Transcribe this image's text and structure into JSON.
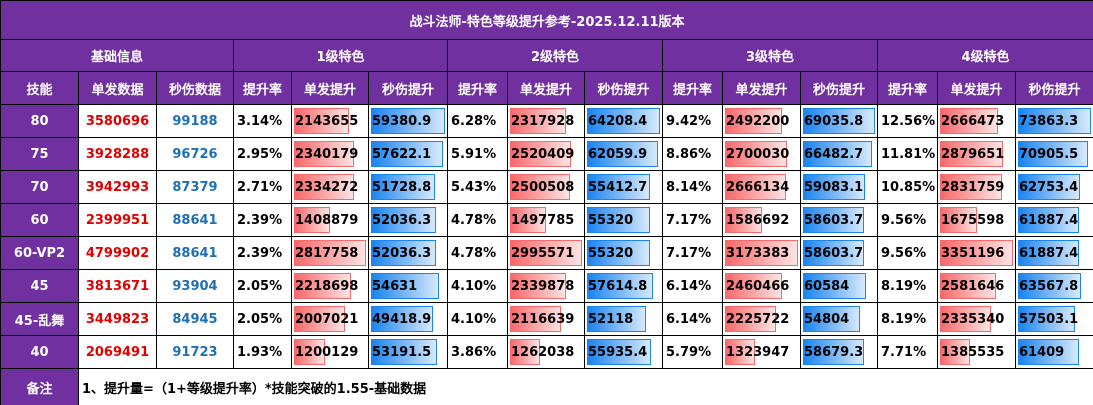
{
  "title": "战斗法师-特色等级提升参考-2025.12.11版本",
  "header": {
    "groups": [
      "基础信息",
      "1级特色",
      "2级特色",
      "3级特色",
      "4级特色"
    ],
    "columns": [
      "技能",
      "单发数据",
      "秒伤数据",
      "提升率",
      "单发提升",
      "秒伤提升",
      "提升率",
      "单发提升",
      "秒伤提升",
      "提升率",
      "单发提升",
      "秒伤提升",
      "提升率",
      "单发提升",
      "秒伤提升"
    ]
  },
  "rows": [
    [
      "80",
      3580696,
      99188,
      "3.14%",
      2143655,
      59380.9,
      "6.28%",
      2317928,
      64208.4,
      "9.42%",
      2492200,
      69035.8,
      "12.56%",
      2666473,
      73863.3
    ],
    [
      "75",
      3928288,
      96726,
      "2.95%",
      2340179,
      57622.1,
      "5.91%",
      2520409,
      62059.9,
      "8.86%",
      2700030,
      66482.7,
      "11.81%",
      2879651,
      70905.5
    ],
    [
      "70",
      3942993,
      87379,
      "2.71%",
      2334272,
      51728.8,
      "5.43%",
      2500508,
      55412.7,
      "8.14%",
      2666134,
      59083.1,
      "10.85%",
      2831759,
      62753.4
    ],
    [
      "60",
      2399951,
      88641,
      "2.39%",
      1408879,
      52036.3,
      "4.78%",
      1497785,
      55320,
      "7.17%",
      1586692,
      58603.7,
      "9.56%",
      1675598,
      61887.4
    ],
    [
      "60-VP2",
      4799902,
      88641,
      "2.39%",
      2817758,
      52036.3,
      "4.78%",
      2995571,
      55320,
      "7.17%",
      3173383,
      58603.7,
      "9.56%",
      3351196,
      61887.4
    ],
    [
      "45",
      3813671,
      93904,
      "2.05%",
      2218698,
      54631,
      "4.10%",
      2339878,
      57614.8,
      "6.14%",
      2460466,
      60584,
      "8.19%",
      2581646,
      63567.8
    ],
    [
      "45-乱舞",
      3449823,
      84945,
      "2.05%",
      2007021,
      49418.9,
      "4.10%",
      2116639,
      52118,
      "6.14%",
      2225722,
      54804,
      "8.19%",
      2335340,
      57503.1
    ],
    [
      "40",
      2069491,
      91723,
      "1.93%",
      1200129,
      53191.5,
      "3.86%",
      1262038,
      55935.4,
      "5.79%",
      1323947,
      58679.3,
      "7.71%",
      1385535,
      61409
    ]
  ],
  "note": {
    "label": "备注",
    "text": "1、提升量=（1+等级提升率）*技能突破的1.55-基础数据"
  }
}
